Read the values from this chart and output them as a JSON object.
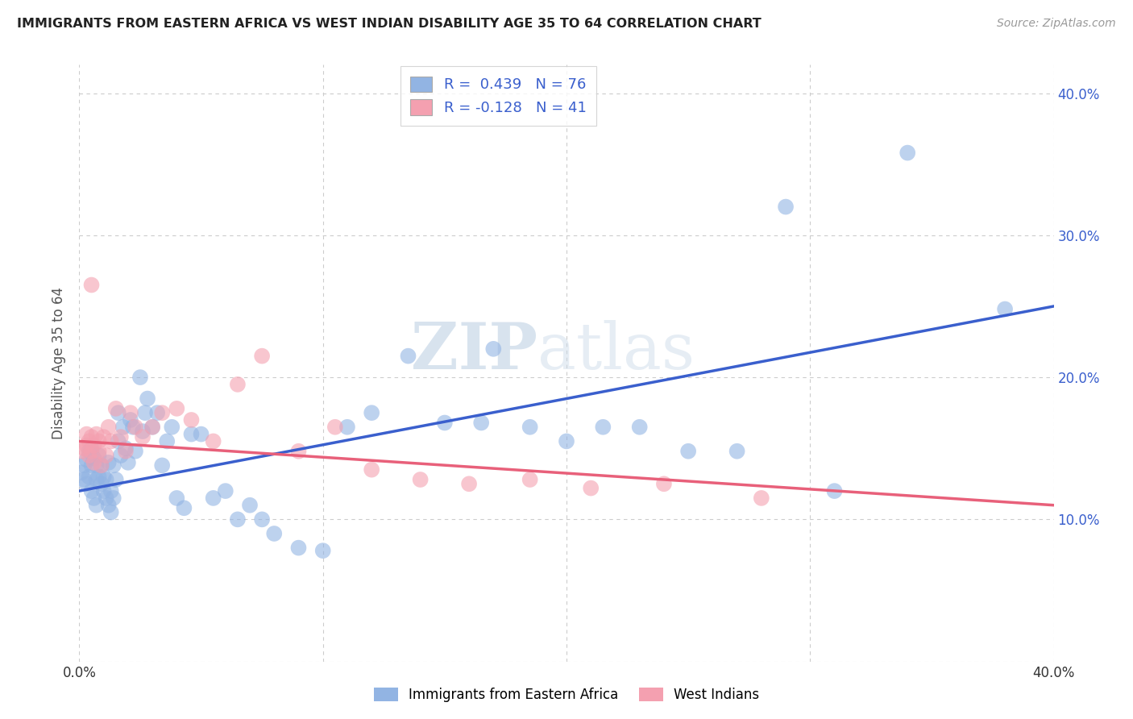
{
  "title": "IMMIGRANTS FROM EASTERN AFRICA VS WEST INDIAN DISABILITY AGE 35 TO 64 CORRELATION CHART",
  "source": "Source: ZipAtlas.com",
  "ylabel": "Disability Age 35 to 64",
  "xlim": [
    0.0,
    0.4
  ],
  "ylim": [
    0.0,
    0.42
  ],
  "color_blue": "#92b4e3",
  "color_pink": "#f4a0b0",
  "line_blue": "#3a5fcd",
  "line_pink": "#e8607a",
  "watermark_zip": "ZIP",
  "watermark_atlas": "atlas",
  "blue_scatter_x": [
    0.001,
    0.002,
    0.002,
    0.003,
    0.003,
    0.004,
    0.004,
    0.005,
    0.005,
    0.005,
    0.006,
    0.006,
    0.007,
    0.007,
    0.007,
    0.008,
    0.008,
    0.009,
    0.009,
    0.01,
    0.01,
    0.011,
    0.011,
    0.012,
    0.012,
    0.013,
    0.013,
    0.014,
    0.014,
    0.015,
    0.016,
    0.016,
    0.017,
    0.018,
    0.019,
    0.02,
    0.021,
    0.022,
    0.023,
    0.025,
    0.026,
    0.027,
    0.028,
    0.03,
    0.032,
    0.034,
    0.036,
    0.038,
    0.04,
    0.043,
    0.046,
    0.05,
    0.055,
    0.06,
    0.065,
    0.07,
    0.075,
    0.08,
    0.09,
    0.1,
    0.11,
    0.12,
    0.135,
    0.15,
    0.165,
    0.17,
    0.185,
    0.2,
    0.215,
    0.23,
    0.25,
    0.27,
    0.29,
    0.31,
    0.34,
    0.38
  ],
  "blue_scatter_y": [
    0.133,
    0.128,
    0.138,
    0.125,
    0.142,
    0.13,
    0.148,
    0.12,
    0.138,
    0.15,
    0.115,
    0.143,
    0.128,
    0.138,
    0.11,
    0.13,
    0.145,
    0.125,
    0.138,
    0.13,
    0.12,
    0.115,
    0.128,
    0.11,
    0.14,
    0.105,
    0.12,
    0.138,
    0.115,
    0.128,
    0.175,
    0.155,
    0.145,
    0.165,
    0.15,
    0.14,
    0.17,
    0.165,
    0.148,
    0.2,
    0.162,
    0.175,
    0.185,
    0.165,
    0.175,
    0.138,
    0.155,
    0.165,
    0.115,
    0.108,
    0.16,
    0.16,
    0.115,
    0.12,
    0.1,
    0.11,
    0.1,
    0.09,
    0.08,
    0.078,
    0.165,
    0.175,
    0.215,
    0.168,
    0.168,
    0.22,
    0.165,
    0.155,
    0.165,
    0.165,
    0.148,
    0.148,
    0.32,
    0.12,
    0.358,
    0.248
  ],
  "pink_scatter_x": [
    0.001,
    0.002,
    0.003,
    0.003,
    0.004,
    0.004,
    0.005,
    0.005,
    0.006,
    0.006,
    0.007,
    0.008,
    0.008,
    0.009,
    0.01,
    0.011,
    0.012,
    0.013,
    0.015,
    0.017,
    0.019,
    0.021,
    0.023,
    0.026,
    0.03,
    0.034,
    0.04,
    0.046,
    0.055,
    0.065,
    0.075,
    0.09,
    0.105,
    0.12,
    0.14,
    0.16,
    0.185,
    0.21,
    0.24,
    0.28,
    0.005
  ],
  "pink_scatter_y": [
    0.148,
    0.15,
    0.152,
    0.16,
    0.155,
    0.145,
    0.148,
    0.158,
    0.152,
    0.14,
    0.16,
    0.155,
    0.148,
    0.138,
    0.158,
    0.145,
    0.165,
    0.155,
    0.178,
    0.158,
    0.148,
    0.175,
    0.165,
    0.158,
    0.165,
    0.175,
    0.178,
    0.17,
    0.155,
    0.195,
    0.215,
    0.148,
    0.165,
    0.135,
    0.128,
    0.125,
    0.128,
    0.122,
    0.125,
    0.115,
    0.265
  ],
  "blue_line_x0": 0.0,
  "blue_line_y0": 0.12,
  "blue_line_x1": 0.4,
  "blue_line_y1": 0.25,
  "pink_line_x0": 0.0,
  "pink_line_y0": 0.155,
  "pink_line_x1": 0.4,
  "pink_line_y1": 0.11
}
